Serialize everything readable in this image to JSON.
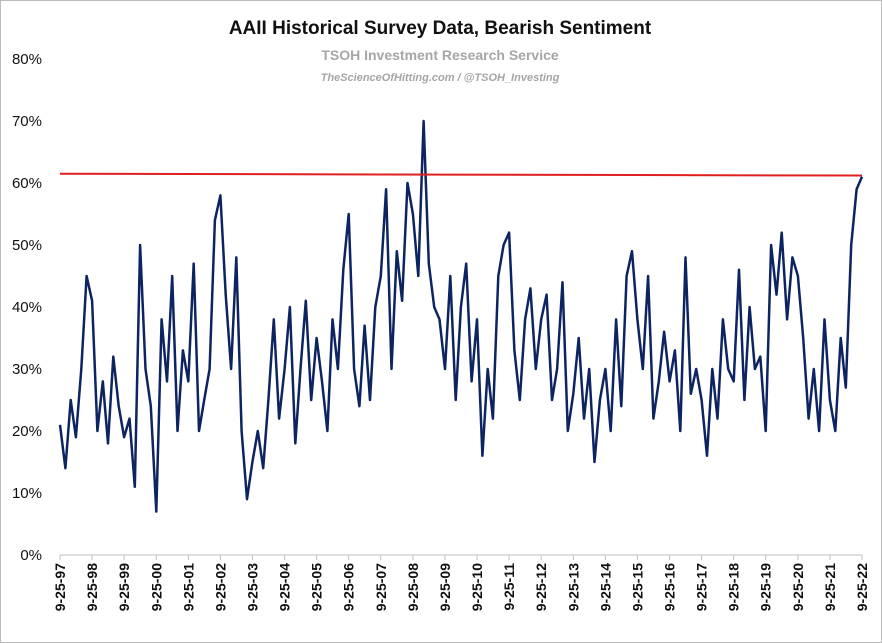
{
  "chart_data": {
    "type": "line",
    "title": "AAII Historical Survey Data, Bearish Sentiment",
    "subtitle": "TSOH Investment Research Service",
    "attribution": "TheScienceOfHitting.com / @TSOH_Investing",
    "color": "#0c2461",
    "x": [
      "1997-09-25",
      "1997-11-25",
      "1998-01-25",
      "1998-03-25",
      "1998-05-25",
      "1998-07-25",
      "1998-09-25",
      "1998-11-25",
      "1999-01-25",
      "1999-03-25",
      "1999-05-25",
      "1999-07-25",
      "1999-09-25",
      "1999-11-25",
      "2000-01-25",
      "2000-03-25",
      "2000-05-25",
      "2000-07-25",
      "2000-09-25",
      "2000-11-25",
      "2001-01-25",
      "2001-03-25",
      "2001-05-25",
      "2001-07-25",
      "2001-09-25",
      "2001-11-25",
      "2002-01-25",
      "2002-03-25",
      "2002-05-25",
      "2002-07-25",
      "2002-09-25",
      "2002-11-25",
      "2003-01-25",
      "2003-03-25",
      "2003-05-25",
      "2003-07-25",
      "2003-09-25",
      "2003-11-25",
      "2004-01-25",
      "2004-03-25",
      "2004-05-25",
      "2004-07-25",
      "2004-09-25",
      "2004-11-25",
      "2005-01-25",
      "2005-03-25",
      "2005-05-25",
      "2005-07-25",
      "2005-09-25",
      "2005-11-25",
      "2006-01-25",
      "2006-03-25",
      "2006-05-25",
      "2006-07-25",
      "2006-09-25",
      "2006-11-25",
      "2007-01-25",
      "2007-03-25",
      "2007-05-25",
      "2007-07-25",
      "2007-09-25",
      "2007-11-25",
      "2008-01-25",
      "2008-03-25",
      "2008-05-25",
      "2008-07-25",
      "2008-09-25",
      "2008-11-25",
      "2009-01-25",
      "2009-03-25",
      "2009-05-25",
      "2009-07-25",
      "2009-09-25",
      "2009-11-25",
      "2010-01-25",
      "2010-03-25",
      "2010-05-25",
      "2010-07-25",
      "2010-09-25",
      "2010-11-25",
      "2011-01-25",
      "2011-03-25",
      "2011-05-25",
      "2011-07-25",
      "2011-09-25",
      "2011-11-25",
      "2012-01-25",
      "2012-03-25",
      "2012-05-25",
      "2012-07-25",
      "2012-09-25",
      "2012-11-25",
      "2013-01-25",
      "2013-03-25",
      "2013-05-25",
      "2013-07-25",
      "2013-09-25",
      "2013-11-25",
      "2014-01-25",
      "2014-03-25",
      "2014-05-25",
      "2014-07-25",
      "2014-09-25",
      "2014-11-25",
      "2015-01-25",
      "2015-03-25",
      "2015-05-25",
      "2015-07-25",
      "2015-09-25",
      "2015-11-25",
      "2016-01-25",
      "2016-03-25",
      "2016-05-25",
      "2016-07-25",
      "2016-09-25",
      "2016-11-25",
      "2017-01-25",
      "2017-03-25",
      "2017-05-25",
      "2017-07-25",
      "2017-09-25",
      "2017-11-25",
      "2018-01-25",
      "2018-03-25",
      "2018-05-25",
      "2018-07-25",
      "2018-09-25",
      "2018-11-25",
      "2019-01-25",
      "2019-03-25",
      "2019-05-25",
      "2019-07-25",
      "2019-09-25",
      "2019-11-25",
      "2020-01-25",
      "2020-03-25",
      "2020-05-25",
      "2020-07-25",
      "2020-09-25",
      "2020-11-25",
      "2021-01-25",
      "2021-03-25",
      "2021-05-25",
      "2021-07-25",
      "2021-09-25",
      "2021-11-25",
      "2022-01-25",
      "2022-03-25",
      "2022-05-25",
      "2022-07-25",
      "2022-09-25"
    ],
    "values": [
      21,
      14,
      25,
      19,
      30,
      45,
      41,
      20,
      28,
      18,
      32,
      24,
      19,
      22,
      11,
      50,
      30,
      24,
      7,
      38,
      28,
      45,
      20,
      33,
      28,
      47,
      20,
      25,
      30,
      54,
      58,
      42,
      30,
      48,
      20,
      9,
      15,
      20,
      14,
      25,
      38,
      22,
      30,
      40,
      18,
      30,
      41,
      25,
      35,
      28,
      20,
      38,
      30,
      46,
      55,
      30,
      24,
      37,
      25,
      40,
      45,
      59,
      30,
      49,
      41,
      60,
      55,
      45,
      70,
      47,
      40,
      38,
      30,
      45,
      25,
      40,
      47,
      28,
      38,
      16,
      30,
      22,
      45,
      50,
      52,
      33,
      25,
      38,
      43,
      30,
      38,
      42,
      25,
      30,
      44,
      20,
      26,
      35,
      22,
      30,
      15,
      25,
      30,
      20,
      38,
      24,
      45,
      49,
      38,
      30,
      45,
      22,
      28,
      36,
      28,
      33,
      20,
      48,
      26,
      30,
      25,
      16,
      30,
      22,
      38,
      30,
      28,
      46,
      25,
      40,
      30,
      32,
      20,
      50,
      42,
      52,
      38,
      48,
      45,
      35,
      22,
      30,
      20,
      38,
      25,
      20,
      35,
      27,
      50,
      59,
      61
    ],
    "reference_line": {
      "values": [
        61.5,
        61.2
      ],
      "color": "#e02020"
    },
    "xlim": [
      "1997-09-25",
      "2022-09-25"
    ],
    "xticks": [
      {
        "value": "1997-09-25",
        "label": "9-25-97"
      },
      {
        "value": "1998-09-25",
        "label": "9-25-98"
      },
      {
        "value": "1999-09-25",
        "label": "9-25-99"
      },
      {
        "value": "2000-09-25",
        "label": "9-25-00"
      },
      {
        "value": "2001-09-25",
        "label": "9-25-01"
      },
      {
        "value": "2002-09-25",
        "label": "9-25-02"
      },
      {
        "value": "2003-09-25",
        "label": "9-25-03"
      },
      {
        "value": "2004-09-25",
        "label": "9-25-04"
      },
      {
        "value": "2005-09-25",
        "label": "9-25-05"
      },
      {
        "value": "2006-09-25",
        "label": "9-25-06"
      },
      {
        "value": "2007-09-25",
        "label": "9-25-07"
      },
      {
        "value": "2008-09-25",
        "label": "9-25-08"
      },
      {
        "value": "2009-09-25",
        "label": "9-25-09"
      },
      {
        "value": "2010-09-25",
        "label": "9-25-10"
      },
      {
        "value": "2011-09-25",
        "label": "9-25-11"
      },
      {
        "value": "2012-09-25",
        "label": "9-25-12"
      },
      {
        "value": "2013-09-25",
        "label": "9-25-13"
      },
      {
        "value": "2014-09-25",
        "label": "9-25-14"
      },
      {
        "value": "2015-09-25",
        "label": "9-25-15"
      },
      {
        "value": "2016-09-25",
        "label": "9-25-16"
      },
      {
        "value": "2017-09-25",
        "label": "9-25-17"
      },
      {
        "value": "2018-09-25",
        "label": "9-25-18"
      },
      {
        "value": "2019-09-25",
        "label": "9-25-19"
      },
      {
        "value": "2020-09-25",
        "label": "9-25-20"
      },
      {
        "value": "2021-09-25",
        "label": "9-25-21"
      },
      {
        "value": "2022-09-25",
        "label": "9-25-22"
      }
    ],
    "ylim": [
      0,
      80
    ],
    "yticks": [
      {
        "value": 0,
        "label": "0%"
      },
      {
        "value": 10,
        "label": "10%"
      },
      {
        "value": 20,
        "label": "20%"
      },
      {
        "value": 30,
        "label": "30%"
      },
      {
        "value": 40,
        "label": "40%"
      },
      {
        "value": 50,
        "label": "50%"
      },
      {
        "value": 60,
        "label": "60%"
      },
      {
        "value": 70,
        "label": "70%"
      },
      {
        "value": 80,
        "label": "80%"
      }
    ]
  }
}
